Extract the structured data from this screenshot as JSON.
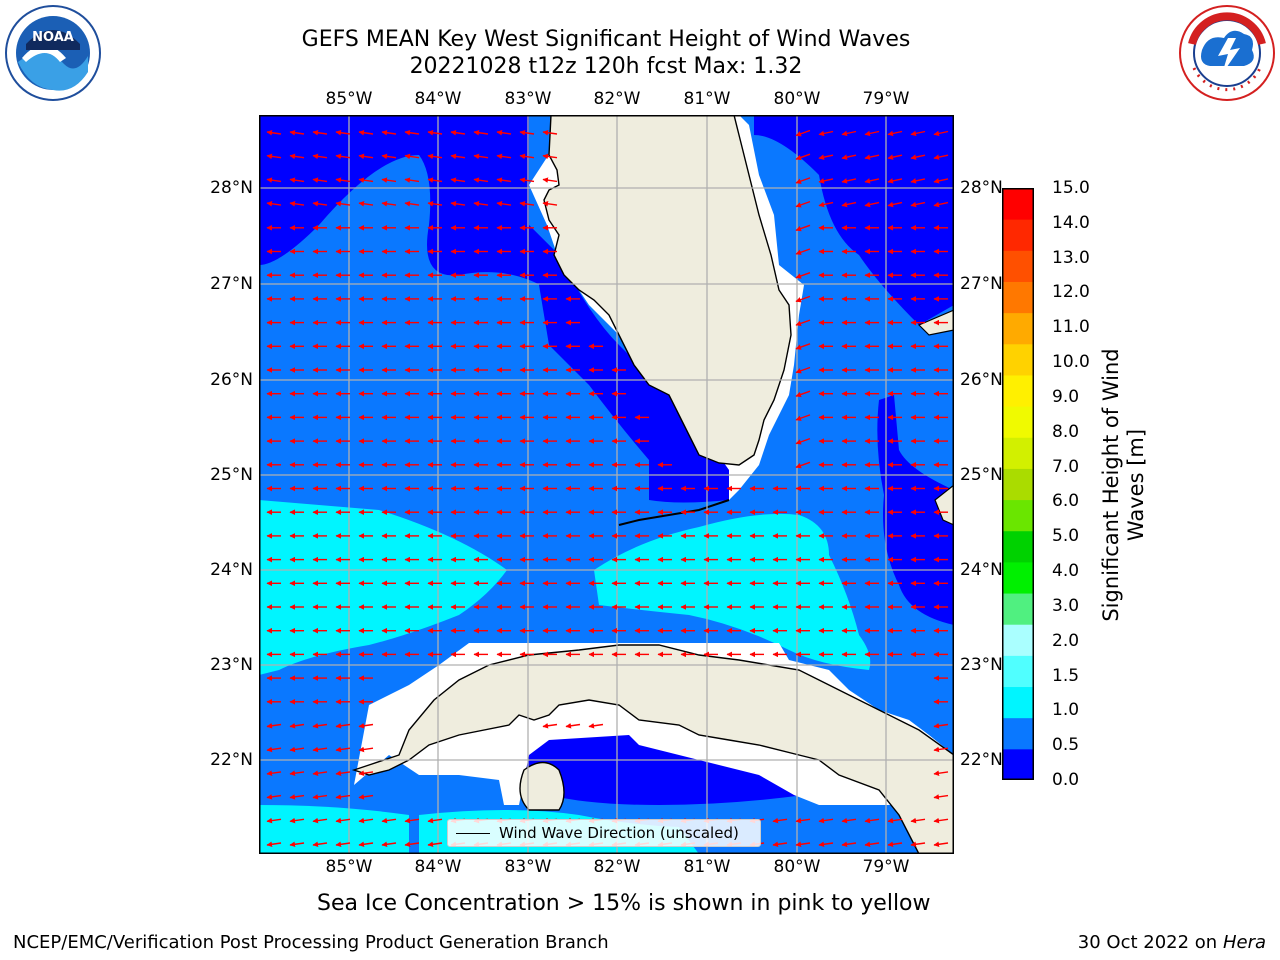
{
  "header": {
    "title_line1": "GEFS MEAN Key West Significant Height of Wind Waves",
    "title_line2": "20221028 t12z 120h fcst   Max: 1.32"
  },
  "logos": {
    "noaa": "NOAA",
    "noaa_ring_text": "NATIONAL OCEANIC AND ATMOSPHERIC ADMINISTRATION · U.S. DEPARTMENT OF COMMERCE",
    "nws_ring_text": "NATIONAL WEATHER SERVICE"
  },
  "map": {
    "lon_labels": [
      "85°W",
      "84°W",
      "83°W",
      "82°W",
      "81°W",
      "80°W",
      "79°W"
    ],
    "lat_labels": [
      "28°N",
      "27°N",
      "26°N",
      "25°N",
      "24°N",
      "23°N",
      "22°N"
    ],
    "colors": {
      "land": "#efedde",
      "level_0_0.5": "#0000ff",
      "level_0.5_1": "#0a78ff",
      "level_1_1.5": "#00f5ff",
      "no_data": "#ffffff",
      "arrow": "#ff0000",
      "grid": "#b0b0b0"
    },
    "legend_label": "Wind Wave Direction (unscaled)"
  },
  "colorbar": {
    "label": "Significant Height of Wind Waves [m]",
    "ticks": [
      "15.0",
      "14.0",
      "13.0",
      "12.0",
      "11.0",
      "10.0",
      "9.0",
      "8.0",
      "7.0",
      "6.0",
      "5.0",
      "4.0",
      "3.0",
      "2.0",
      "1.5",
      "1.0",
      "0.5",
      "0.0"
    ],
    "colors_bottom_to_top": [
      "#0000ff",
      "#0a78ff",
      "#00f5ff",
      "#50ffff",
      "#aaffff",
      "#50f080",
      "#00f000",
      "#00d200",
      "#6ae600",
      "#aadc00",
      "#d2f000",
      "#f0fa00",
      "#fff000",
      "#ffd200",
      "#ffaa00",
      "#ff7800",
      "#ff5000",
      "#ff2800",
      "#ff0000"
    ]
  },
  "subtitle": "Sea Ice Concentration > 15% is shown in pink to yellow",
  "footer": {
    "left": "NCEP/EMC/Verification Post Processing Product Generation Branch",
    "right_prefix": "30 Oct 2022 on ",
    "right_machine": "Hera"
  }
}
